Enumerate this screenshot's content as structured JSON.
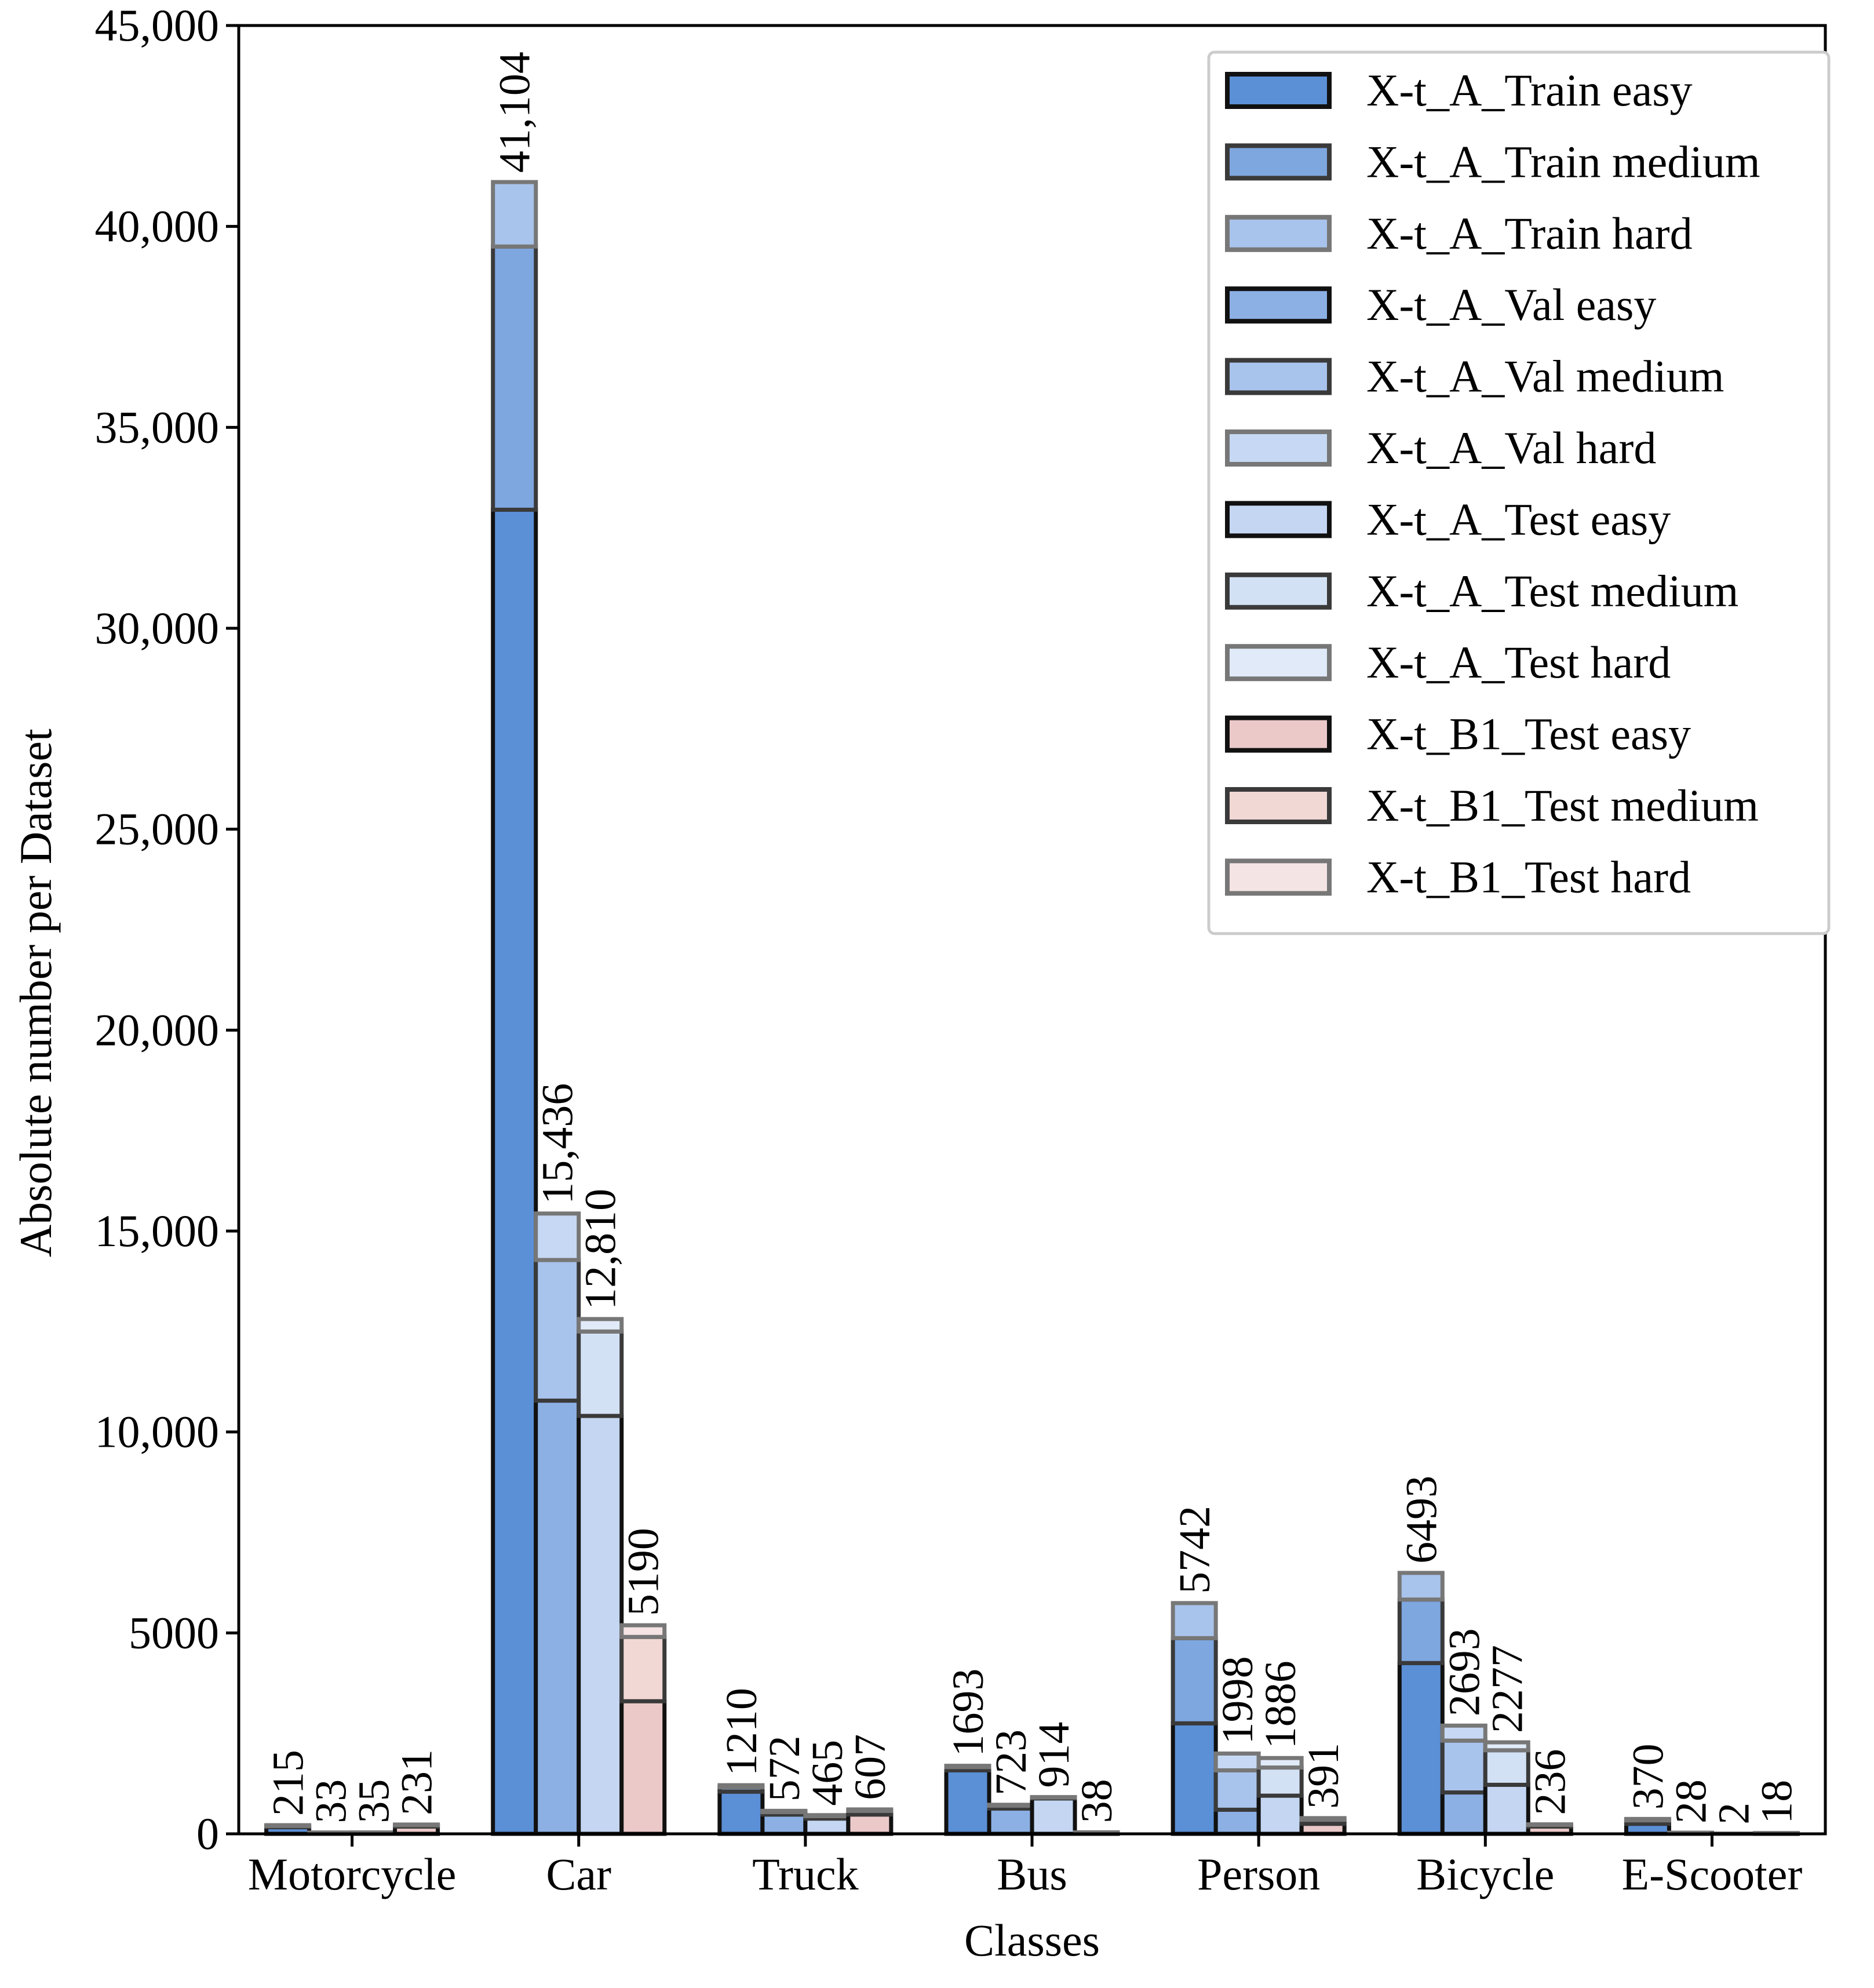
{
  "chart_data": {
    "type": "bar",
    "xlabel": "Classes",
    "ylabel": "Absolute number per Dataset",
    "ylim": [
      0,
      45000
    ],
    "yticks": [
      0,
      5000,
      10000,
      15000,
      20000,
      25000,
      30000,
      35000,
      40000,
      45000
    ],
    "ytick_labels": [
      "0",
      "5000",
      "10,000",
      "15,000",
      "20,000",
      "25,000",
      "30,000",
      "35,000",
      "40,000",
      "45,000"
    ],
    "categories": [
      "Motorcycle",
      "Car",
      "Truck",
      "Bus",
      "Person",
      "Bicycle",
      "E-Scooter"
    ],
    "grid": false,
    "legend_position": "top-right",
    "datasets": [
      "Train",
      "Val",
      "Test",
      "B1 Test"
    ],
    "dataset_totals": {
      "Train": [
        215,
        41104,
        1210,
        1693,
        5742,
        6493,
        370
      ],
      "Val": [
        33,
        15436,
        572,
        723,
        1998,
        2693,
        28
      ],
      "Test": [
        35,
        12810,
        465,
        914,
        1886,
        2277,
        2
      ],
      "B1 Test": [
        231,
        5190,
        607,
        38,
        391,
        236,
        18
      ]
    },
    "total_labels": {
      "Train": [
        "215",
        "41,104",
        "1210",
        "1693",
        "5742",
        "6493",
        "370"
      ],
      "Val": [
        "33",
        "15,436",
        "572",
        "723",
        "1998",
        "2693",
        "28"
      ],
      "Test": [
        "35",
        "12,810",
        "465",
        "914",
        "1886",
        "2277",
        "2"
      ],
      "B1 Test": [
        "231",
        "5190",
        "607",
        "38",
        "391",
        "236",
        "18"
      ]
    },
    "series": [
      {
        "name": "X-t_A_Train easy",
        "dataset": "Train",
        "level": "easy",
        "color": "#5b8fd6",
        "edge": "#111111",
        "values": [
          165,
          32950,
          1050,
          1580,
          2750,
          4250,
          250
        ]
      },
      {
        "name": "X-t_A_Train medium",
        "dataset": "Train",
        "level": "medium",
        "color": "#7ea6df",
        "edge": "#3a3a3a",
        "values": [
          30,
          6550,
          110,
          80,
          2120,
          1580,
          85
        ]
      },
      {
        "name": "X-t_A_Train hard",
        "dataset": "Train",
        "level": "hard",
        "color": "#a9c4ec",
        "edge": "#777777",
        "values": [
          20,
          1604,
          50,
          33,
          872,
          663,
          35
        ]
      },
      {
        "name": "X-t_A_Val easy",
        "dataset": "Val",
        "level": "easy",
        "color": "#8cb0e4",
        "edge": "#111111",
        "values": [
          25,
          10780,
          480,
          630,
          600,
          1030,
          20
        ]
      },
      {
        "name": "X-t_A_Val medium",
        "dataset": "Val",
        "level": "medium",
        "color": "#a8c3ec",
        "edge": "#3a3a3a",
        "values": [
          5,
          3500,
          60,
          70,
          980,
          1290,
          6
        ]
      },
      {
        "name": "X-t_A_Val hard",
        "dataset": "Val",
        "level": "hard",
        "color": "#c6d8f3",
        "edge": "#777777",
        "values": [
          3,
          1156,
          32,
          23,
          418,
          373,
          2
        ]
      },
      {
        "name": "X-t_A_Test easy",
        "dataset": "Test",
        "level": "easy",
        "color": "#c4d6f2",
        "edge": "#111111",
        "values": [
          25,
          10400,
          380,
          880,
          950,
          1220,
          1
        ]
      },
      {
        "name": "X-t_A_Test medium",
        "dataset": "Test",
        "level": "medium",
        "color": "#d3e1f5",
        "edge": "#3a3a3a",
        "values": [
          6,
          2100,
          60,
          24,
          700,
          860,
          1
        ]
      },
      {
        "name": "X-t_A_Test hard",
        "dataset": "Test",
        "level": "hard",
        "color": "#e1eaf8",
        "edge": "#777777",
        "values": [
          4,
          310,
          25,
          10,
          236,
          197,
          0
        ]
      },
      {
        "name": "X-t_B1_Test easy",
        "dataset": "B1 Test",
        "level": "easy",
        "color": "#ecc9c9",
        "edge": "#111111",
        "values": [
          180,
          3300,
          480,
          30,
          250,
          180,
          14
        ]
      },
      {
        "name": "X-t_B1_Test medium",
        "dataset": "B1 Test",
        "level": "medium",
        "color": "#f1d8d4",
        "edge": "#3a3a3a",
        "values": [
          35,
          1600,
          90,
          6,
          100,
          42,
          3
        ]
      },
      {
        "name": "X-t_B1_Test hard",
        "dataset": "B1 Test",
        "level": "hard",
        "color": "#f5e4e4",
        "edge": "#777777",
        "values": [
          16,
          290,
          37,
          2,
          41,
          14,
          1
        ]
      }
    ]
  }
}
